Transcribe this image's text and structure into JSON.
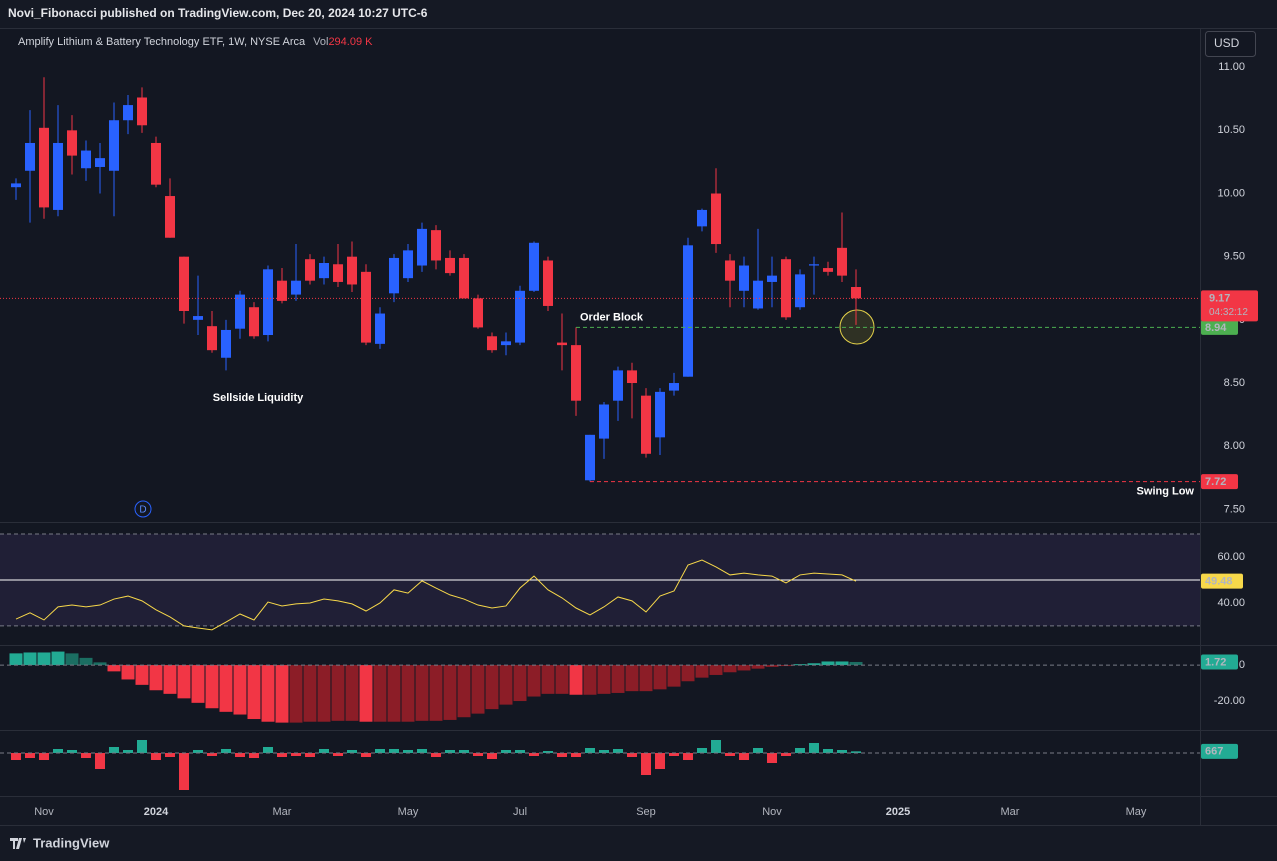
{
  "header": {
    "publisher": "Novi_Fibonacci published on TradingView.com, Dec 20, 2024 10:27 UTC-6"
  },
  "footer": {
    "brand": "TradingView"
  },
  "currency": "USD",
  "chart_data": [
    {
      "type": "candlestick",
      "title": "Amplify Lithium & Battery Technology ETF, 1W, NYSE Arca",
      "volume": {
        "name": "Vol",
        "value": 294090,
        "value_label": "294.09 K"
      },
      "countdown": "04:32:12",
      "event_marker": "D",
      "annotations": [
        "Sellside Liquidity"
      ],
      "levels": [
        {
          "name": "Order Block",
          "value": 8.94,
          "color": "#4caf50"
        },
        {
          "name": "Swing Low",
          "value": 7.72,
          "color": "#f23645"
        }
      ],
      "up_color": "#2962ff",
      "down_color": "#f23645",
      "grid": false,
      "categories": [
        null,
        null,
        "Nov",
        null,
        null,
        null,
        null,
        null,
        null,
        null,
        "2024",
        null,
        null,
        null,
        null,
        null,
        null,
        null,
        null,
        "Mar",
        null,
        null,
        null,
        null,
        null,
        null,
        null,
        null,
        "May",
        null,
        null,
        null,
        null,
        null,
        null,
        null,
        "Jul",
        null,
        null,
        null,
        null,
        null,
        null,
        null,
        null,
        "Sep",
        null,
        null,
        null,
        null,
        null,
        null,
        null,
        null,
        "Nov",
        null,
        null,
        null,
        null,
        null,
        null,
        null,
        null,
        "2025",
        null,
        null,
        null,
        null,
        null,
        null,
        null,
        "Mar",
        null,
        null,
        null,
        null,
        null,
        null,
        null,
        null,
        "May",
        null,
        null,
        null,
        null
      ],
      "open": [
        10.05,
        10.18,
        10.52,
        9.87,
        10.5,
        10.2,
        10.21,
        10.18,
        10.58,
        10.76,
        10.4,
        9.98,
        9.5,
        9.0,
        8.95,
        8.7,
        8.93,
        9.1,
        8.88,
        9.31,
        9.2,
        9.48,
        9.33,
        9.44,
        9.5,
        9.38,
        8.81,
        9.21,
        9.33,
        9.43,
        9.71,
        9.49,
        9.49,
        9.17,
        8.87,
        8.8,
        8.82,
        9.23,
        9.47,
        8.82,
        8.8,
        7.73,
        8.06,
        8.36,
        8.6,
        8.4,
        8.07,
        8.44,
        8.55,
        9.74,
        10.0,
        9.47,
        9.23,
        9.09,
        9.3,
        9.48,
        9.1,
        9.43,
        9.41,
        9.57,
        9.26,
        null,
        null,
        null,
        null,
        null,
        null,
        null,
        null,
        null,
        null,
        null,
        null,
        null,
        null,
        null,
        null,
        null,
        null,
        null,
        null,
        null,
        null,
        null,
        null
      ],
      "high": [
        10.12,
        10.66,
        10.92,
        10.7,
        10.62,
        10.42,
        10.4,
        10.72,
        10.78,
        10.84,
        10.45,
        10.12,
        9.5,
        9.35,
        9.07,
        9.0,
        9.23,
        9.14,
        9.43,
        9.41,
        9.6,
        9.52,
        9.5,
        9.6,
        9.62,
        9.44,
        9.1,
        9.52,
        9.6,
        9.77,
        9.75,
        9.55,
        9.52,
        9.2,
        8.9,
        8.9,
        9.27,
        9.62,
        9.5,
        9.05,
        8.94,
        8.09,
        8.35,
        8.63,
        8.66,
        8.46,
        8.46,
        8.58,
        9.65,
        9.88,
        10.2,
        9.52,
        9.5,
        9.72,
        9.5,
        9.5,
        9.4,
        9.5,
        9.46,
        9.85,
        9.4,
        null,
        null,
        null,
        null,
        null,
        null,
        null,
        null,
        null,
        null,
        null,
        null,
        null,
        null,
        null,
        null,
        null,
        null,
        null,
        null,
        null,
        null,
        null,
        null
      ],
      "low": [
        9.95,
        9.77,
        9.8,
        9.82,
        10.15,
        10.1,
        10.0,
        9.82,
        10.47,
        10.48,
        10.05,
        9.65,
        8.97,
        8.88,
        8.74,
        8.6,
        8.85,
        8.85,
        8.83,
        9.13,
        9.15,
        9.28,
        9.28,
        9.26,
        9.22,
        8.8,
        8.77,
        9.14,
        9.3,
        9.38,
        9.4,
        9.35,
        9.17,
        8.93,
        8.74,
        8.72,
        8.8,
        9.22,
        9.07,
        8.6,
        8.24,
        7.72,
        7.9,
        8.2,
        8.22,
        7.91,
        7.93,
        8.4,
        8.55,
        9.7,
        9.53,
        9.1,
        9.1,
        9.08,
        9.1,
        9.0,
        9.08,
        9.2,
        9.35,
        9.3,
        8.96,
        null,
        null,
        null,
        null,
        null,
        null,
        null,
        null,
        null,
        null,
        null,
        null,
        null,
        null,
        null,
        null,
        null,
        null,
        null,
        null,
        null,
        null,
        null,
        null
      ],
      "close": [
        10.08,
        10.4,
        9.89,
        10.4,
        10.3,
        10.34,
        10.28,
        10.58,
        10.7,
        10.54,
        10.07,
        9.65,
        9.07,
        9.03,
        8.76,
        8.92,
        9.2,
        8.87,
        9.4,
        9.15,
        9.31,
        9.31,
        9.45,
        9.3,
        9.28,
        8.82,
        9.05,
        9.49,
        9.55,
        9.72,
        9.47,
        9.37,
        9.17,
        8.94,
        8.76,
        8.83,
        9.23,
        9.61,
        9.11,
        8.8,
        8.36,
        8.09,
        8.33,
        8.6,
        8.5,
        7.94,
        8.43,
        8.5,
        9.59,
        9.87,
        9.6,
        9.31,
        9.43,
        9.31,
        9.35,
        9.02,
        9.36,
        9.44,
        9.38,
        9.35,
        9.17,
        null,
        null,
        null,
        null,
        null,
        null,
        null,
        null,
        null,
        null,
        null,
        null,
        null,
        null,
        null,
        null,
        null,
        null,
        null,
        null,
        null,
        null,
        null,
        null
      ],
      "ylim": [
        7.4,
        11.31
      ],
      "yticks": [
        {
          "value": 7.5,
          "label": "7.50"
        },
        {
          "value": 8,
          "label": "8.00"
        },
        {
          "value": 8.5,
          "label": "8.50"
        },
        {
          "value": 9,
          "label": "9.00"
        },
        {
          "value": 9.5,
          "label": "9.50"
        },
        {
          "value": 10,
          "label": "10.00"
        },
        {
          "value": 10.5,
          "label": "10.50"
        },
        {
          "value": 11,
          "label": "11.00"
        }
      ]
    },
    {
      "type": "line",
      "color": "#f7d84a",
      "band_color": "#7e57c2",
      "levels": [
        30,
        70
      ],
      "midline": 50,
      "values": [
        33.0,
        35.7,
        32.6,
        38.3,
        39.1,
        38.3,
        39.1,
        41.7,
        43.0,
        40.9,
        37.0,
        33.9,
        30.0,
        29.1,
        28.3,
        31.7,
        35.2,
        32.6,
        40.4,
        38.7,
        39.6,
        40.0,
        41.7,
        40.9,
        39.6,
        36.5,
        40.0,
        45.7,
        44.3,
        49.6,
        46.5,
        43.5,
        41.7,
        39.1,
        37.8,
        38.7,
        46.5,
        51.7,
        45.7,
        42.2,
        37.8,
        34.8,
        38.3,
        42.6,
        40.9,
        36.1,
        43.0,
        45.2,
        56.5,
        58.7,
        55.7,
        52.2,
        53.0,
        52.2,
        51.7,
        48.7,
        52.2,
        53.0,
        52.6,
        52.2,
        49.48,
        null,
        null,
        null,
        null,
        null,
        null,
        null,
        null,
        null,
        null,
        null,
        null,
        null,
        null,
        null,
        null,
        null,
        null,
        null,
        null,
        null,
        null,
        null,
        null
      ],
      "ylim": [
        21.7,
        74.8
      ],
      "yticks": [
        {
          "value": 40,
          "label": "40.00"
        },
        {
          "value": 60,
          "label": "60.00"
        }
      ]
    },
    {
      "type": "bar",
      "colors": {
        "positive_rising": "#22ab94",
        "positive_falling": "#1b6e62",
        "negative_falling": "#f23645",
        "negative_rising": "#8c1d27"
      },
      "values": [
        6.5,
        7,
        7,
        7.5,
        6.5,
        4,
        1.5,
        -3.5,
        -8,
        -11,
        -14,
        -16,
        -18.5,
        -21,
        -24,
        -26,
        -27.5,
        -30,
        -31.5,
        -32,
        -32,
        -31.5,
        -31.5,
        -31,
        -31,
        -31.5,
        -31.5,
        -31.5,
        -31.5,
        -31,
        -31,
        -30.5,
        -29,
        -27,
        -24.5,
        -22,
        -20,
        -17.5,
        -16,
        -16,
        -16.5,
        -16.5,
        -16,
        -15.5,
        -14.5,
        -14.5,
        -13.5,
        -12,
        -9,
        -7,
        -5.5,
        -4,
        -3,
        -2,
        -1,
        -0.5,
        0.5,
        1,
        2,
        2,
        1.72,
        null,
        null,
        null,
        null,
        null,
        null,
        null,
        null,
        null,
        null,
        null,
        null,
        null,
        null,
        null,
        null,
        null,
        null,
        null,
        null,
        null,
        null,
        null,
        null
      ],
      "ylim": [
        -36.1,
        10.6
      ],
      "yticks": [
        {
          "value": -20,
          "label": "-20.00"
        },
        0
      ]
    },
    {
      "type": "bar",
      "up_color": "#22ab94",
      "down_color": "#f23645",
      "values": [
        -2800,
        -2000,
        -2800,
        1600,
        1200,
        -2000,
        -6400,
        2400,
        1200,
        5200,
        -2800,
        -1600,
        -14800,
        1200,
        -1200,
        1600,
        -1600,
        -2000,
        2400,
        -1600,
        -1200,
        -1600,
        1600,
        -1200,
        1200,
        -1600,
        1600,
        1600,
        1200,
        1600,
        -1600,
        1200,
        1200,
        -1200,
        -2400,
        1200,
        1200,
        -1200,
        800,
        -1600,
        -1600,
        2000,
        1200,
        1600,
        -1600,
        -8800,
        -6400,
        -1200,
        -2800,
        2000,
        5200,
        -1200,
        -2800,
        2000,
        -4000,
        -1200,
        2000,
        4000,
        1600,
        1200,
        667,
        null,
        null,
        null,
        null,
        null,
        null,
        null,
        null,
        null,
        null,
        null,
        null,
        null,
        null,
        null,
        null,
        null,
        null,
        null,
        null,
        null,
        null,
        null,
        null
      ],
      "ylim": [
        -16800,
        8800
      ]
    }
  ]
}
